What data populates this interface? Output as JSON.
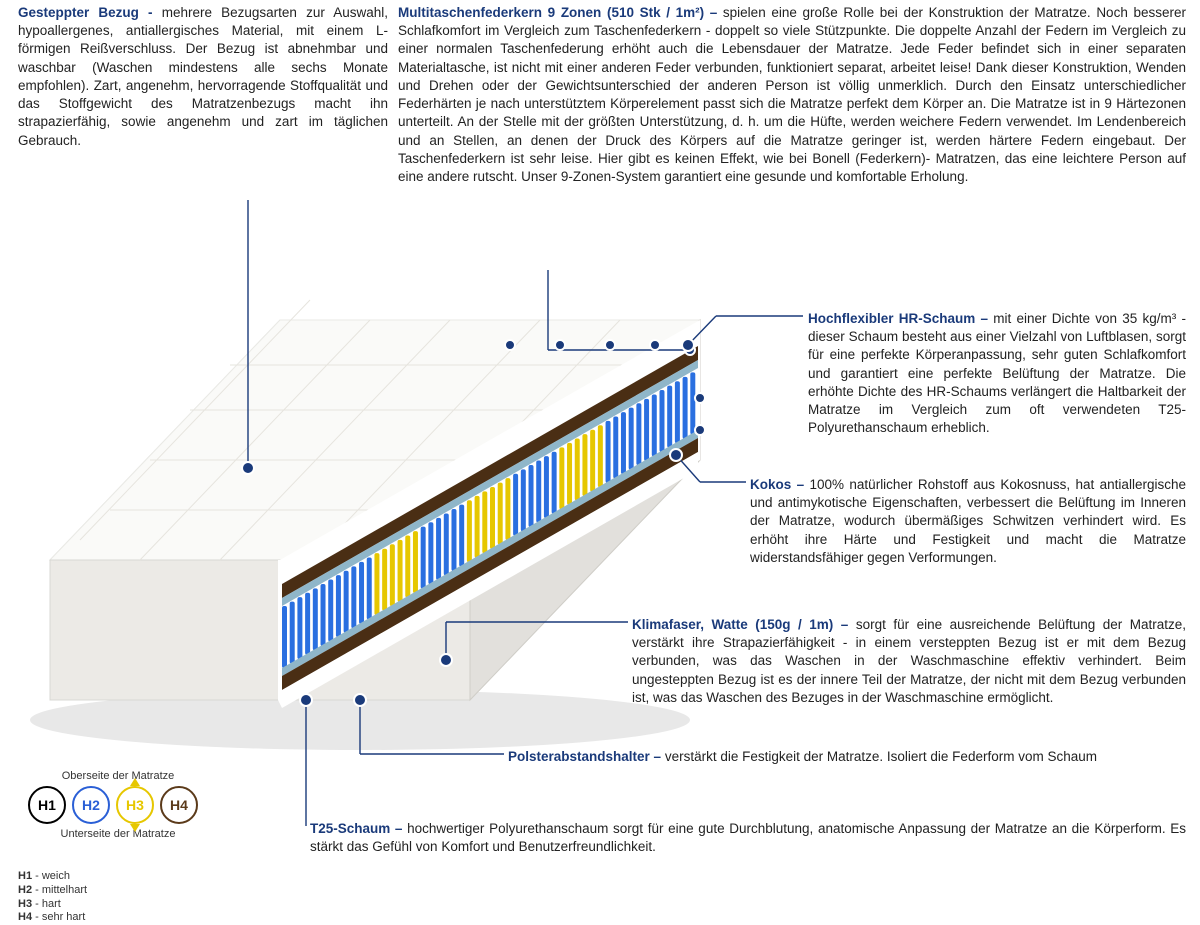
{
  "sections": {
    "bezug": {
      "title": "Gesteppter Bezug -",
      "body": "mehrere Bezugsarten zur Auswahl, hypoallergenes, antiallergisches Material, mit einem L-förmigen Reißverschluss. Der Bezug ist abnehmbar und waschbar (Waschen mindestens alle sechs Monate empfohlen). Zart, angenehm, hervorragende Stoffqualität und das Stoffgewicht des Matratzenbezugs macht ihn strapazierfähig, sowie angenehm und zart im täglichen Gebrauch."
    },
    "federkern": {
      "title": "Multitaschenfederkern 9 Zonen (510 Stk / 1m²) –",
      "body": "spielen eine große Rolle bei der Konstruktion der Matratze. Noch besserer Schlafkomfort im Vergleich zum Taschenfederkern - doppelt so viele Stützpunkte. Die doppelte Anzahl der Federn im Vergleich zu einer normalen Taschenfederung erhöht auch die Lebensdauer der Matratze. Jede Feder befindet sich in einer separaten Materialtasche, ist nicht mit einer anderen Feder verbunden, funktioniert separat, arbeitet leise! Dank dieser Konstruktion, Wenden und Drehen oder der Gewichtsunterschied der anderen Person ist völlig unmerklich. Durch den Einsatz unterschiedlicher Federhärten je nach unterstütztem Körperelement passt sich die Matratze perfekt dem Körper an. Die Matratze ist in 9 Härtezonen unterteilt. An der Stelle mit der größten Unterstützung, d. h. um die Hüfte, werden weichere Federn verwendet. Im Lendenbereich und an Stellen, an denen der Druck des Körpers auf die Matratze geringer ist, werden härtere Federn eingebaut. Der Taschenfederkern ist sehr leise. Hier gibt es keinen Effekt, wie bei Bonell (Federkern)- Matratzen, das eine leichtere Person auf eine andere rutscht. Unser 9-Zonen-System garantiert eine gesunde und komfortable Erholung."
    },
    "hrschaum": {
      "title": "Hochflexibler HR-Schaum –",
      "body": "mit einer Dichte von 35 kg/m³ - dieser Schaum besteht aus einer Vielzahl von Luftblasen, sorgt für eine perfekte Körperanpassung, sehr guten Schlafkomfort und garantiert eine perfekte Belüftung der Matratze. Die erhöhte Dichte des HR-Schaums verlängert die Haltbarkeit der Matratze im Vergleich zum oft verwendeten T25-Polyurethanschaum erheblich."
    },
    "kokos": {
      "title": "Kokos –",
      "body": "100% natürlicher Rohstoff aus Kokosnuss, hat antiallergische und antimykotische Eigenschaften, verbessert die Belüftung im Inneren der Matratze, wodurch übermäßiges Schwitzen verhindert wird. Es erhöht ihre Härte und Festigkeit und macht die Matratze widerstandsfähiger gegen Verformungen."
    },
    "klimafaser": {
      "title": "Klimafaser, Watte (150g / 1m) –",
      "body": "sorgt für eine ausreichende Belüftung der Matratze, verstärkt ihre Strapazierfähigkeit - in einem versteppten Bezug ist er mit dem Bezug verbunden, was das Waschen in der Waschmaschine effektiv verhindert. Beim ungesteppten Bezug ist es der innere Teil der Matratze, der nicht mit dem Bezug verbunden ist, was das Waschen des Bezuges in der Waschmaschine ermöglicht."
    },
    "polster": {
      "title": "Polsterabstandshalter –",
      "body": "verstärkt die Festigkeit der Matratze. Isoliert die Federform vom Schaum"
    },
    "t25": {
      "title": "T25-Schaum –",
      "body": "hochwertiger Polyurethanschaum sorgt für eine gute Durchblutung, anatomische Anpassung der Matratze an die Körperform. Es stärkt das Gefühl von Komfort und Benutzerfreundlichkeit."
    }
  },
  "hardness": {
    "top_label": "Oberseite der Matratze",
    "bottom_label": "Unterseite der Matratze",
    "items": [
      {
        "id": "H1",
        "color": "#000000",
        "arrows": "none"
      },
      {
        "id": "H2",
        "color": "#2a5fd6",
        "arrows": "none"
      },
      {
        "id": "H3",
        "color": "#e6c700",
        "arrows": "both"
      },
      {
        "id": "H4",
        "color": "#5b3a1a",
        "arrows": "none"
      }
    ],
    "legend": [
      {
        "k": "H1",
        "v": "weich"
      },
      {
        "k": "H2",
        "v": "mittelhart"
      },
      {
        "k": "H3",
        "v": "hart"
      },
      {
        "k": "H4",
        "v": "sehr hart"
      }
    ]
  },
  "leaderlines": {
    "stroke": "#1a3a7a",
    "dot_fill": "#1a3a7a",
    "dot_border": "#ffffff"
  },
  "diagram": {
    "colors": {
      "cover": "#f2f2f0",
      "cover_shadow": "#d8d8d4",
      "foam_cut": "#ffffff",
      "kokos": "#4a2e14",
      "kokos_light": "#6b4020",
      "spring_blue": "#2a6fe0",
      "spring_yellow": "#e6c700",
      "pad_blue": "#8fb6c9",
      "floor_shadow": "#e8e8e8"
    },
    "spring_zones": [
      "blue",
      "blue",
      "yellow",
      "blue",
      "yellow",
      "blue",
      "yellow",
      "blue",
      "blue"
    ]
  }
}
